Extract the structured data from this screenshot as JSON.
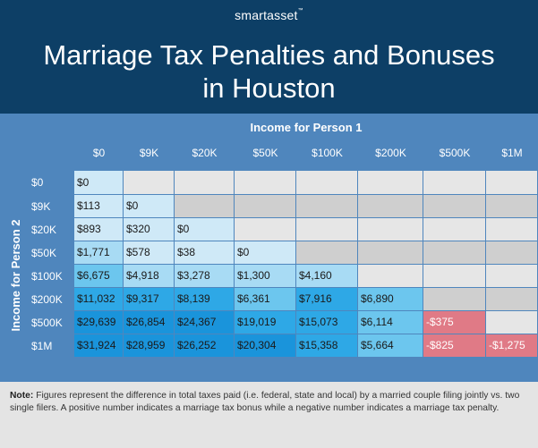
{
  "brand": {
    "name": "smartasset",
    "mark": "™"
  },
  "title": {
    "line1": "Marriage Tax Penalties and Bonuses",
    "line2": "in Houston"
  },
  "colors": {
    "header_bg": "#0d3f66",
    "panel_bg": "#4f86bd",
    "empty_light": "#e6e6e6",
    "empty_dark": "#cfcfcf",
    "bonus_1": "#cfe9f7",
    "bonus_2": "#a8dbf4",
    "bonus_3": "#6cc6ee",
    "bonus_4": "#2ea8e6",
    "bonus_5": "#1a94db",
    "penalty": "#e07a86"
  },
  "note": {
    "label": "Note:",
    "text": "Figures represent the difference in total taxes paid (i.e. federal, state and local) by a married couple filing jointly vs. two single filers. A positive number indicates a marriage tax bonus while a negative number indicates a marriage tax penalty."
  },
  "chart_data": {
    "type": "table",
    "title": "Marriage Tax Penalties and Bonuses in Houston",
    "column_axis_label": "Income for Person 1",
    "row_axis_label": "Income for Person 2",
    "columns": [
      "$0",
      "$9K",
      "$20K",
      "$50K",
      "$100K",
      "$200K",
      "$500K",
      "$1M"
    ],
    "rows": [
      "$0",
      "$9K",
      "$20K",
      "$50K",
      "$100K",
      "$200K",
      "$500K",
      "$1M"
    ],
    "cells": [
      [
        "$0",
        "",
        "",
        "",
        "",
        "",
        "",
        ""
      ],
      [
        "$113",
        "$0",
        "",
        "",
        "",
        "",
        "",
        ""
      ],
      [
        "$893",
        "$320",
        "$0",
        "",
        "",
        "",
        "",
        ""
      ],
      [
        "$1,771",
        "$578",
        "$38",
        "$0",
        "",
        "",
        "",
        ""
      ],
      [
        "$6,675",
        "$4,918",
        "$3,278",
        "$1,300",
        "$4,160",
        "",
        "",
        ""
      ],
      [
        "$11,032",
        "$9,317",
        "$8,139",
        "$6,361",
        "$7,916",
        "$6,890",
        "",
        ""
      ],
      [
        "$29,639",
        "$26,854",
        "$24,367",
        "$19,019",
        "$15,073",
        "$6,114",
        "-$375",
        ""
      ],
      [
        "$31,924",
        "$28,959",
        "$26,252",
        "$20,304",
        "$15,358",
        "$5,664",
        "-$825",
        "-$1,275"
      ]
    ],
    "values": [
      [
        0,
        null,
        null,
        null,
        null,
        null,
        null,
        null
      ],
      [
        113,
        0,
        null,
        null,
        null,
        null,
        null,
        null
      ],
      [
        893,
        320,
        0,
        null,
        null,
        null,
        null,
        null
      ],
      [
        1771,
        578,
        38,
        0,
        null,
        null,
        null,
        null
      ],
      [
        6675,
        4918,
        3278,
        1300,
        4160,
        null,
        null,
        null
      ],
      [
        11032,
        9317,
        8139,
        6361,
        7916,
        6890,
        null,
        null
      ],
      [
        29639,
        26854,
        24367,
        19019,
        15073,
        6114,
        -375,
        null
      ],
      [
        31924,
        28959,
        26252,
        20304,
        15358,
        5664,
        -825,
        -1275
      ]
    ]
  }
}
